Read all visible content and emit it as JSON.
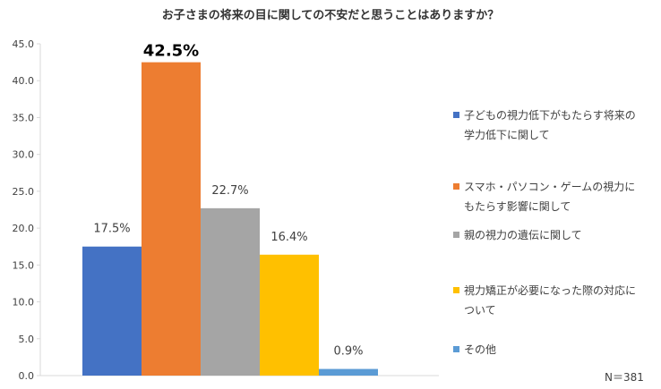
{
  "chart_data": {
    "type": "bar",
    "title": "お子さまの将来の目に関しての不安だと思うことはありますか？",
    "categories": [
      "子どもの視力低下がもたらす将来の学力低下に関して",
      "スマホ・パソコン・ゲームの視力にもたらす影響に関して",
      "親の視力の遺伝に関して",
      "視力矯正が必要になった際の対応について",
      "その他"
    ],
    "values": [
      17.5,
      42.5,
      22.7,
      16.4,
      0.9
    ],
    "data_labels": [
      "17.5%",
      "42.5%",
      "22.7%",
      "16.4%",
      "0.9%"
    ],
    "colors": [
      "#4472C4",
      "#ED7D31",
      "#A5A5A5",
      "#FFC000",
      "#5B9BD5"
    ],
    "ylim": [
      0,
      45
    ],
    "yticks": [
      "0.0",
      "5.0",
      "10.0",
      "15.0",
      "20.0",
      "25.0",
      "30.0",
      "35.0",
      "40.0",
      "45.0"
    ],
    "xlabel": "",
    "ylabel": "",
    "grid": false,
    "legend_position": "right"
  },
  "legend": {
    "items": [
      {
        "lines": [
          "子どもの視力低下がもたらす将来の",
          "学力低下に関して"
        ]
      },
      {
        "lines": [
          "スマホ・パソコン・ゲームの視力に",
          "もたらす影響に関して"
        ]
      },
      {
        "lines": [
          "親の視力の遺伝に関して"
        ]
      },
      {
        "lines": [
          "視力矯正が必要になった際の対応に",
          "ついて"
        ]
      },
      {
        "lines": [
          "その他"
        ]
      }
    ]
  },
  "note": "N＝381"
}
